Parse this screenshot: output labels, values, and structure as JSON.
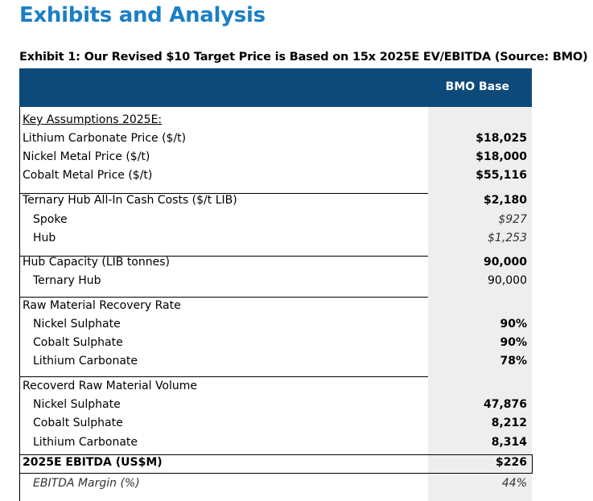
{
  "page": {
    "title": "Exhibits and Analysis",
    "exhibit_caption": "Exhibit 1: Our Revised $10 Target Price is Based on 15x 2025E EV/EBITDA (Source: BMO)"
  },
  "table": {
    "column_header": "BMO Base",
    "rows": {
      "key_assumptions": {
        "label": "Key Assumptions 2025E:",
        "value": ""
      },
      "lithium_price": {
        "label": "Lithium Carbonate Price ($/t)",
        "value": "$18,025"
      },
      "nickel_price": {
        "label": "Nickel Metal Price ($/t)",
        "value": "$18,000"
      },
      "cobalt_price": {
        "label": "Cobalt Metal Price ($/t)",
        "value": "$55,116"
      },
      "cash_costs": {
        "label": "Ternary Hub All-In Cash Costs ($/t LIB)",
        "value": "$2,180"
      },
      "spoke": {
        "label": "Spoke",
        "value": "$927"
      },
      "hub": {
        "label": "Hub",
        "value": "$1,253"
      },
      "hub_capacity": {
        "label": "Hub Capacity (LIB tonnes)",
        "value": "90,000"
      },
      "ternary_hub": {
        "label": "Ternary Hub",
        "value": "90,000"
      },
      "recovery_rate": {
        "label": "Raw Material Recovery Rate",
        "value": ""
      },
      "rr_nickel": {
        "label": "Nickel Sulphate",
        "value": "90%"
      },
      "rr_cobalt": {
        "label": "Cobalt Sulphate",
        "value": "90%"
      },
      "rr_lithium": {
        "label": "Lithium Carbonate",
        "value": "78%"
      },
      "recovered_volume": {
        "label": "Recoverd Raw Material Volume",
        "value": ""
      },
      "rv_nickel": {
        "label": "Nickel Sulphate",
        "value": "47,876"
      },
      "rv_cobalt": {
        "label": "Cobalt Sulphate",
        "value": "8,212"
      },
      "rv_lithium": {
        "label": "Lithium Carbonate",
        "value": "8,314"
      },
      "ebitda": {
        "label": "2025E EBITDA (US$M)",
        "value": "$226"
      },
      "ebitda_margin": {
        "label": "EBITDA Margin (%)",
        "value": "44%"
      }
    }
  },
  "colors": {
    "title": "#1b7fc4",
    "header_bg": "#0d4a7a",
    "value_column_bg": "#eeeeee"
  }
}
